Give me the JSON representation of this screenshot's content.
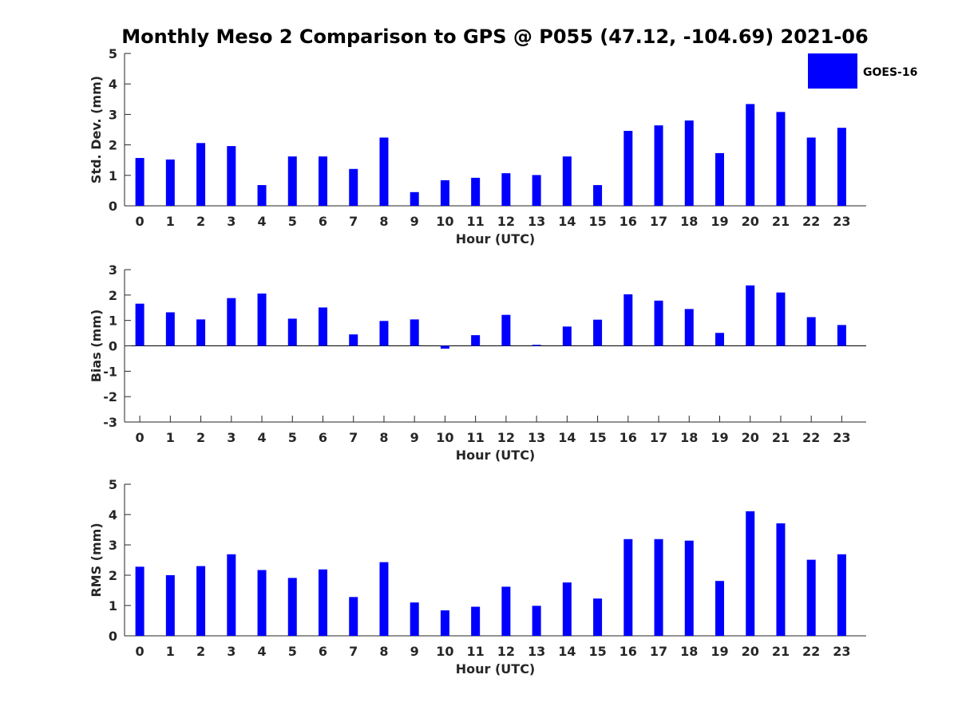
{
  "figure": {
    "title": "Monthly Meso 2 Comparison to GPS @ P055 (47.12, -104.69) 2021-06"
  },
  "legend": {
    "label": "GOES-16",
    "color": "#0000ff",
    "placement": "top-right"
  },
  "chart_data": [
    {
      "type": "bar",
      "title": "Monthly Meso 2 Comparison to GPS @ P055 (47.12, -104.69) 2021-06",
      "xlabel": "Hour (UTC)",
      "ylabel": "Std. Dev. (mm)",
      "categories": [
        "0",
        "1",
        "2",
        "3",
        "4",
        "5",
        "6",
        "7",
        "8",
        "9",
        "10",
        "11",
        "12",
        "13",
        "14",
        "15",
        "16",
        "17",
        "18",
        "19",
        "20",
        "21",
        "22",
        "23"
      ],
      "series": [
        {
          "name": "GOES-16",
          "color": "#0000ff",
          "values": [
            1.57,
            1.52,
            2.06,
            1.96,
            0.68,
            1.62,
            1.62,
            1.21,
            2.24,
            0.45,
            0.84,
            0.92,
            1.07,
            1.01,
            1.62,
            0.68,
            2.46,
            2.64,
            2.8,
            1.73,
            3.34,
            3.08,
            2.24,
            2.56
          ]
        }
      ],
      "ylim": [
        0,
        5
      ],
      "yticks": [
        0,
        1,
        2,
        3,
        4,
        5
      ],
      "grid": false
    },
    {
      "type": "bar",
      "xlabel": "Hour (UTC)",
      "ylabel": "Bias (mm)",
      "categories": [
        "0",
        "1",
        "2",
        "3",
        "4",
        "5",
        "6",
        "7",
        "8",
        "9",
        "10",
        "11",
        "12",
        "13",
        "14",
        "15",
        "16",
        "17",
        "18",
        "19",
        "20",
        "21",
        "22",
        "23"
      ],
      "series": [
        {
          "name": "GOES-16",
          "color": "#0000ff",
          "values": [
            1.66,
            1.32,
            1.04,
            1.88,
            2.06,
            1.07,
            1.51,
            0.45,
            0.98,
            1.04,
            -0.11,
            0.42,
            1.22,
            0.04,
            0.76,
            1.03,
            2.03,
            1.78,
            1.45,
            0.51,
            2.38,
            2.1,
            1.13,
            0.82
          ]
        }
      ],
      "ylim": [
        -3,
        3
      ],
      "yticks": [
        -3,
        -2,
        -1,
        0,
        1,
        2,
        3
      ],
      "grid": false
    },
    {
      "type": "bar",
      "xlabel": "Hour (UTC)",
      "ylabel": "RMS (mm)",
      "categories": [
        "0",
        "1",
        "2",
        "3",
        "4",
        "5",
        "6",
        "7",
        "8",
        "9",
        "10",
        "11",
        "12",
        "13",
        "14",
        "15",
        "16",
        "17",
        "18",
        "19",
        "20",
        "21",
        "22",
        "23"
      ],
      "series": [
        {
          "name": "GOES-16",
          "color": "#0000ff",
          "values": [
            2.28,
            2.0,
            2.3,
            2.69,
            2.17,
            1.91,
            2.19,
            1.28,
            2.43,
            1.1,
            0.84,
            0.96,
            1.62,
            0.99,
            1.76,
            1.23,
            3.19,
            3.19,
            3.14,
            1.81,
            4.11,
            3.71,
            2.51,
            2.69
          ]
        }
      ],
      "ylim": [
        0,
        5
      ],
      "yticks": [
        0,
        1,
        2,
        3,
        4,
        5
      ],
      "grid": false
    }
  ]
}
